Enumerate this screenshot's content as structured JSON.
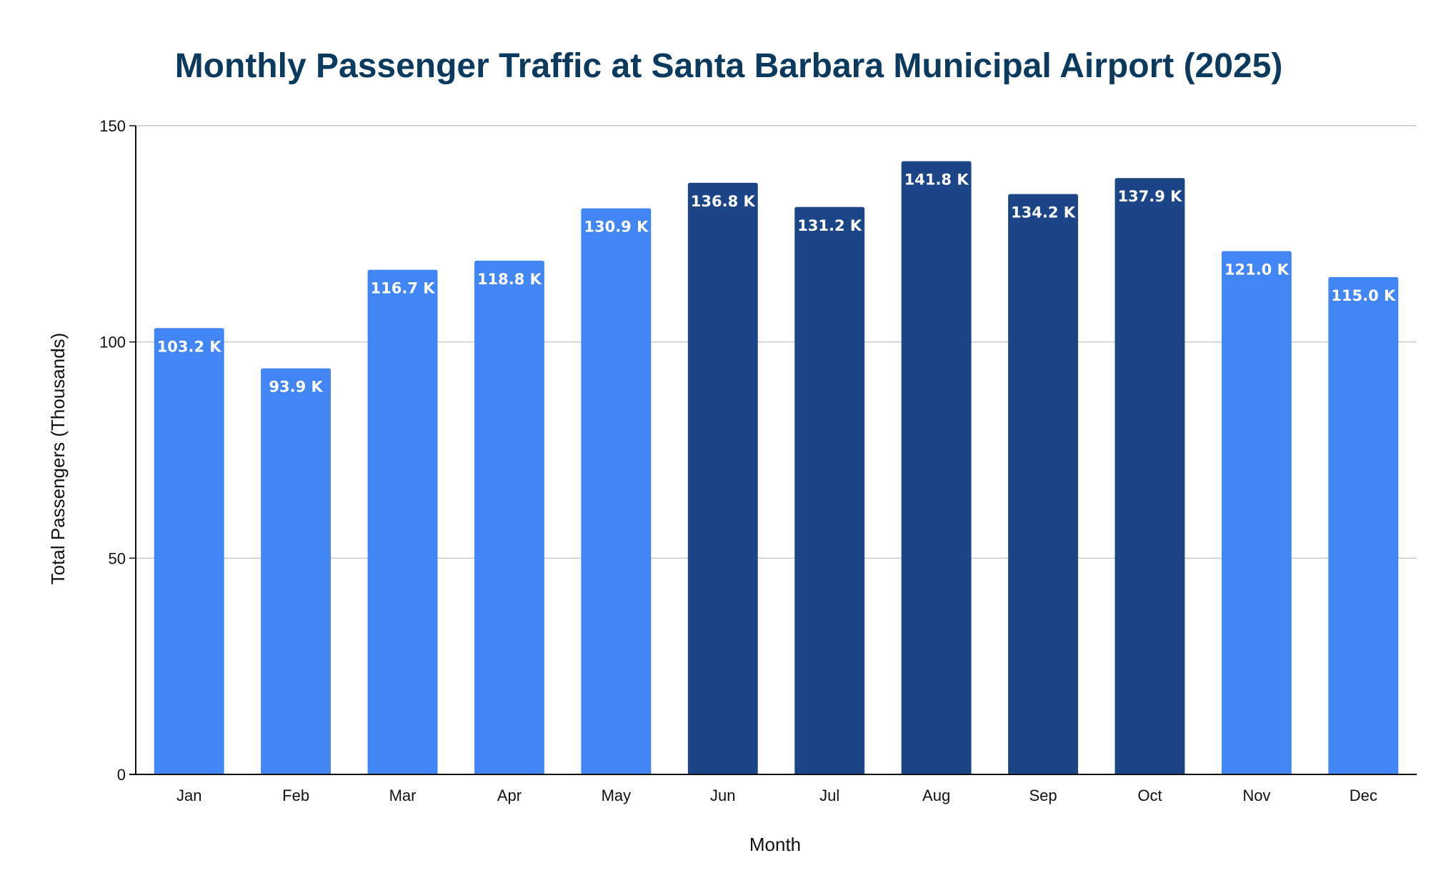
{
  "chart_data": {
    "type": "bar",
    "title": "Monthly Passenger Traffic at Santa Barbara Municipal Airport (2025)",
    "xlabel": "Month",
    "ylabel": "Total Passengers (Thousands)",
    "ylim": [
      0,
      150
    ],
    "yticks": [
      "0",
      "50",
      "100",
      "150"
    ],
    "grid": true,
    "legend": "none",
    "categories": [
      "Jan",
      "Feb",
      "Mar",
      "Apr",
      "May",
      "Jun",
      "Jul",
      "Aug",
      "Sep",
      "Oct",
      "Nov",
      "Dec"
    ],
    "values": [
      103.2,
      93.9,
      116.7,
      118.8,
      130.9,
      136.8,
      131.2,
      141.8,
      134.2,
      137.9,
      121.0,
      115.0
    ],
    "data_labels": [
      "103.2 K",
      "93.9 K",
      "116.7 K",
      "118.8 K",
      "130.9 K",
      "136.8 K",
      "131.2 K",
      "141.8 K",
      "134.2 K",
      "137.9 K",
      "121.0 K",
      "115.0 K"
    ],
    "highlighted_months": [
      "Jun",
      "Jul",
      "Aug",
      "Sep",
      "Oct"
    ],
    "colors": {
      "bar": "#4285f4",
      "bar_highlight": "#1c4587",
      "title": "#0b3a5e",
      "grid": "#c8c8c8",
      "axis": "#111111"
    }
  }
}
